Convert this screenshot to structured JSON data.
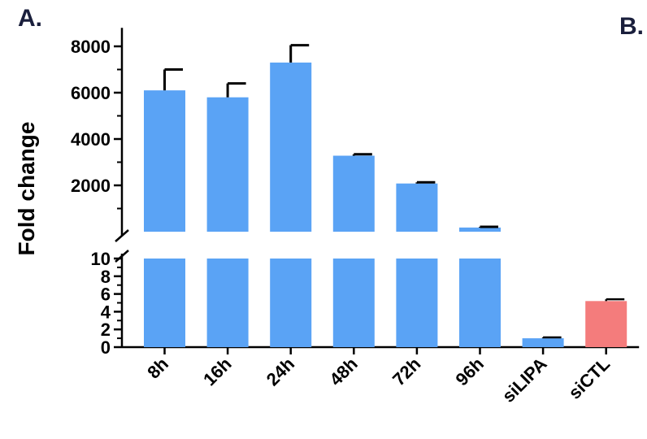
{
  "panel_labels": {
    "left": "A.",
    "right": "B."
  },
  "chart_data": {
    "type": "bar",
    "ylabel": "Fold change",
    "xlabel": "",
    "categories": [
      "8h",
      "16h",
      "24h",
      "48h",
      "72h",
      "96h",
      "siLIPA",
      "siCTL"
    ],
    "values": [
      6100,
      5800,
      7300,
      3280,
      2080,
      180,
      1,
      5.2
    ],
    "errors": [
      900,
      600,
      750,
      60,
      50,
      30,
      0.1,
      0.2
    ],
    "bar_colors": [
      "#5aa3f5",
      "#5aa3f5",
      "#5aa3f5",
      "#5aa3f5",
      "#5aa3f5",
      "#5aa3f5",
      "#5aa3f5",
      "#f47c7c"
    ],
    "y_axis_break": true,
    "lower_segment": {
      "ylim": [
        0,
        10
      ],
      "ticks": [
        0,
        2,
        4,
        6,
        8,
        10
      ],
      "minor_ticks": [
        1,
        3,
        5,
        7,
        9
      ]
    },
    "upper_segment": {
      "ylim": [
        0,
        8800
      ],
      "ticks": [
        2000,
        4000,
        6000,
        8000
      ],
      "minor_ticks": [
        1000,
        3000,
        5000,
        7000
      ]
    },
    "grid": false,
    "legend": "none"
  }
}
